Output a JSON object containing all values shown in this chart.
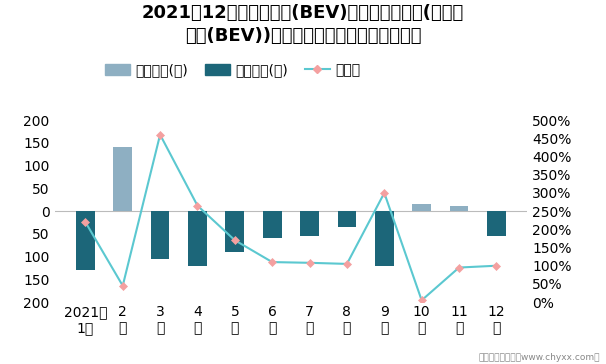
{
  "title_line1": "2021年12月雪佛兰畅巡(BEV)旗下最畅销轿车(雪佛兰",
  "title_line2": "畅巡(BEV))近一年库存情况及产销率统计图",
  "months": [
    "2021年\n1月",
    "2\n月",
    "3\n月",
    "4\n月",
    "5\n月",
    "6\n月",
    "7\n月",
    "8\n月",
    "9\n月",
    "10\n月",
    "11\n月",
    "12\n月"
  ],
  "jiiya_stock": [
    0,
    140,
    0,
    0,
    0,
    0,
    0,
    0,
    0,
    15,
    12,
    0
  ],
  "qingcang_stock": [
    -130,
    0,
    -105,
    -120,
    -90,
    -60,
    -55,
    -35,
    -120,
    0,
    0,
    -55
  ],
  "production_rate": [
    220,
    45,
    460,
    265,
    170,
    110,
    108,
    105,
    300,
    5,
    95,
    100
  ],
  "bar_color_jiiya": "#8EAFC2",
  "bar_color_qingcang": "#1C6679",
  "line_color": "#5BC8D0",
  "line_marker_color": "#F4A0A0",
  "ylim_left": [
    -200,
    200
  ],
  "ylim_right": [
    0,
    500
  ],
  "yticks_left_vals": [
    200,
    150,
    100,
    50,
    0,
    -50,
    -100,
    -150,
    -200
  ],
  "yticks_left_labels": [
    "200",
    "150",
    "100",
    "50",
    "0",
    "50",
    "100",
    "150",
    "200"
  ],
  "yticks_right_vals": [
    0,
    50,
    100,
    150,
    200,
    250,
    300,
    350,
    400,
    450,
    500
  ],
  "yticks_right_labels": [
    "0%",
    "50%",
    "100%",
    "150%",
    "200%",
    "250%",
    "300%",
    "350%",
    "400%",
    "450%",
    "500%"
  ],
  "legend_labels": [
    "积压库存(辆)",
    "清仓库存(辆)",
    "产销率"
  ],
  "footer": "制图：智研咨询（www.chyxx.com）",
  "background_color": "#FFFFFF",
  "title_fontsize": 13,
  "tick_fontsize": 8,
  "legend_fontsize": 9,
  "footer_fontsize": 6.5
}
